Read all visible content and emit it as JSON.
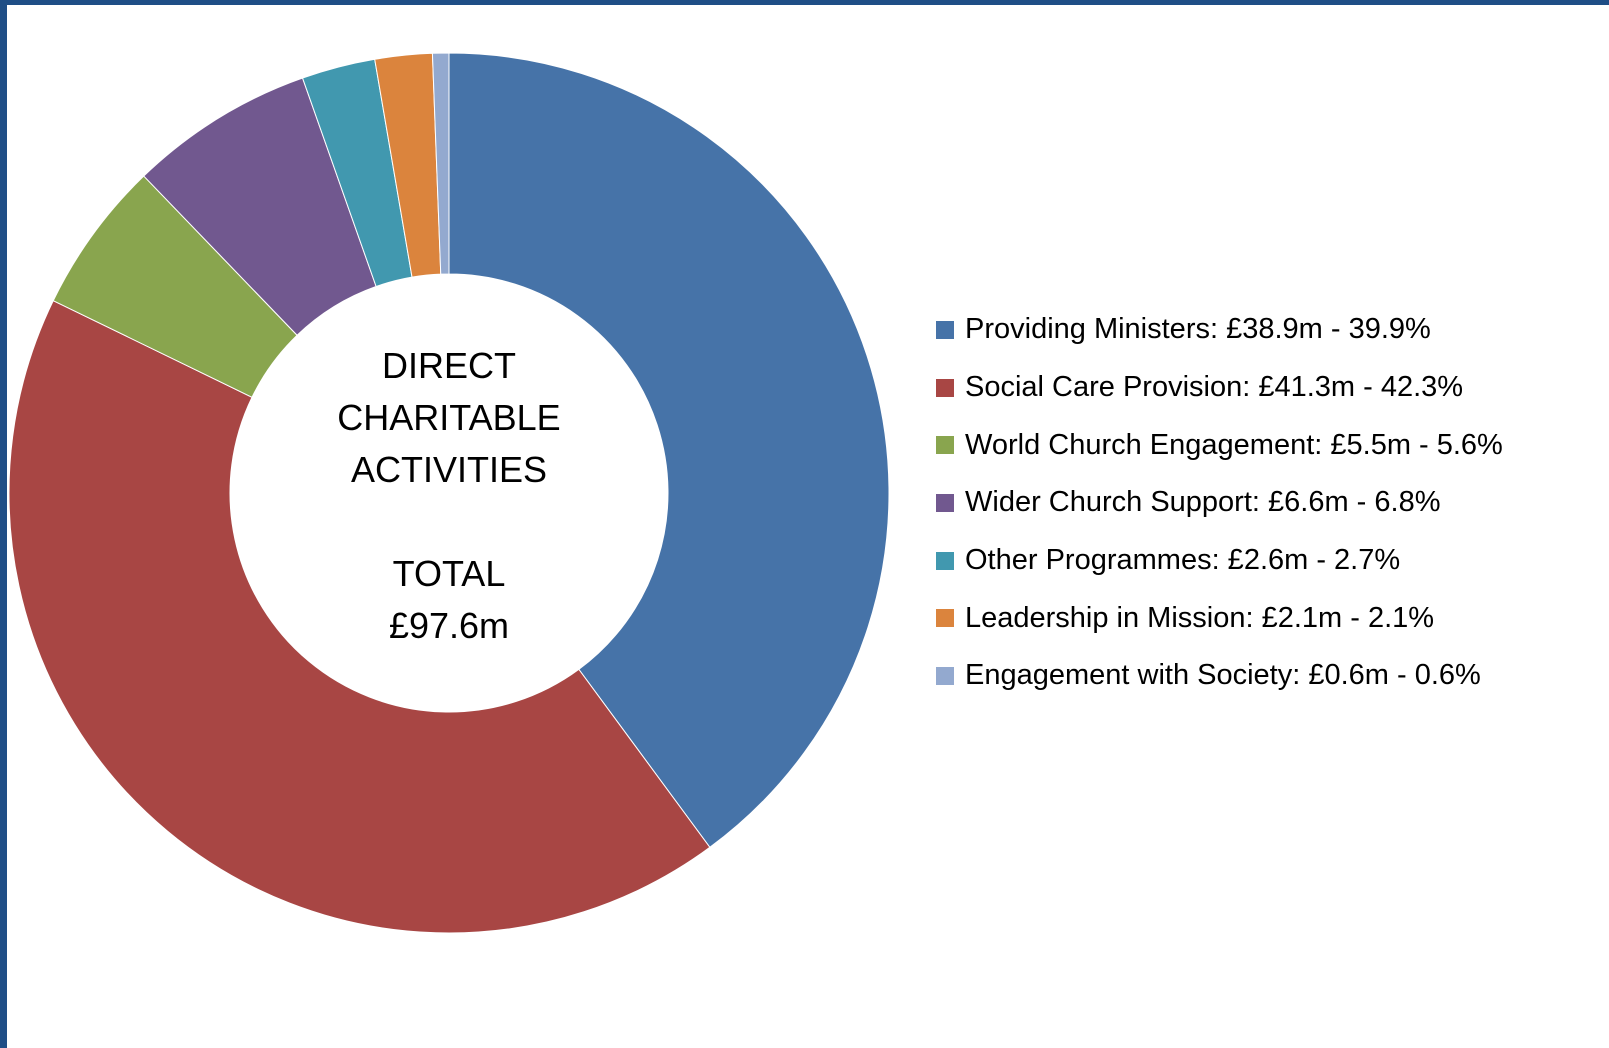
{
  "chart_data": {
    "type": "pie",
    "donut": true,
    "center_label": {
      "lines": [
        "DIRECT",
        "CHARITABLE",
        "ACTIVITIES",
        "",
        "TOTAL",
        "£97.6m"
      ]
    },
    "total": 97.6,
    "units": "£m",
    "slices": [
      {
        "label": "Providing Ministers",
        "value": 38.9,
        "percent": 39.9,
        "color": "#4673a8",
        "legend": "Providing Ministers: £38.9m - 39.9%"
      },
      {
        "label": "Social Care Provision",
        "value": 41.3,
        "percent": 42.3,
        "color": "#a84644",
        "legend": "Social Care Provision: £41.3m - 42.3%"
      },
      {
        "label": "World Church Engagement",
        "value": 5.5,
        "percent": 5.6,
        "color": "#89a54e",
        "legend": "World Church Engagement: £5.5m - 5.6%"
      },
      {
        "label": "Wider Church Support",
        "value": 6.6,
        "percent": 6.8,
        "color": "#71588f",
        "legend": "Wider Church Support: £6.6m - 6.8%"
      },
      {
        "label": "Other Programmes",
        "value": 2.6,
        "percent": 2.7,
        "color": "#4198af",
        "legend": "Other Programmes: £2.6m - 2.7%"
      },
      {
        "label": "Leadership in Mission",
        "value": 2.1,
        "percent": 2.1,
        "color": "#db843d",
        "legend": "Leadership in Mission: £2.1m - 2.1%"
      },
      {
        "label": "Engagement with Society",
        "value": 0.6,
        "percent": 0.6,
        "color": "#93a9cf",
        "legend": "Engagement with Society: £0.6m - 0.6%"
      }
    ],
    "legend_position": "right",
    "frame_color": "#1f4e86"
  }
}
